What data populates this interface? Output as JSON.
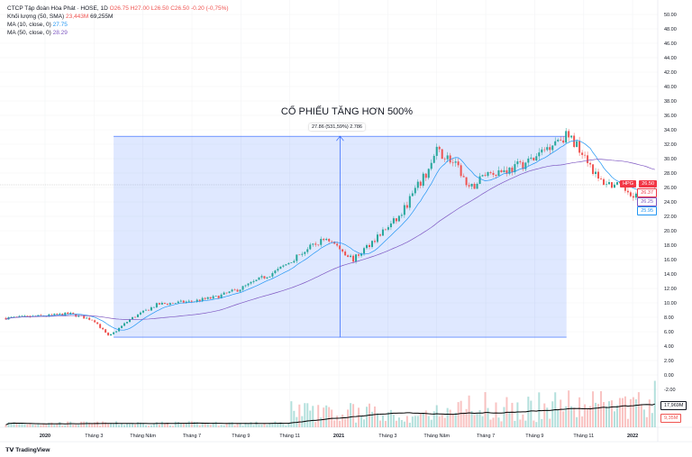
{
  "legend": {
    "symbol": "CTCP Tập đoàn Hòa Phát · HOSE, 1D",
    "open": "O26.75",
    "high": "H27.00",
    "low": "L26.50",
    "close": "C26.50",
    "change": "-0.20 (-0,75%)",
    "volume_label": "Khối lượng (50, SMA)",
    "volume_value": "23,443M",
    "volume_ma": "69,255M",
    "ma10_label": "MA (10, close, 0)",
    "ma10_value": "27.75",
    "ma50_label": "MA (50, close, 0)",
    "ma50_value": "28.29"
  },
  "annotation": {
    "title": "CỔ PHIẾU TĂNG HƠN 500%",
    "measure": "27.86 (531,59%) 2.786"
  },
  "price_labels": {
    "ticker": "HPG",
    "last": "26.50",
    "l1": "26.37",
    "l2": "26.25",
    "l3": "25.95",
    "vol_ma": "17,969M",
    "vol": "9,35M"
  },
  "branding": "TradingView",
  "colors": {
    "up": "#26a69a",
    "down": "#ef5350",
    "ma10": "#2196f3",
    "ma50": "#7e57c2",
    "measure": "#2962ff"
  },
  "chart_data": {
    "type": "candlestick",
    "title": "CỔ PHIẾU TĂNG HƠN 500%",
    "y_ticks": [
      50,
      48,
      46,
      44,
      42,
      40,
      38,
      36,
      34,
      32,
      30,
      28,
      26,
      24,
      22,
      20,
      18,
      16,
      14,
      12,
      10,
      8,
      6,
      4,
      2,
      0,
      -2
    ],
    "x_ticks": [
      {
        "t": 0,
        "label": "2020"
      },
      {
        "t": 2,
        "label": "Tháng 3"
      },
      {
        "t": 4,
        "label": "Tháng Năm"
      },
      {
        "t": 6,
        "label": "Tháng 7"
      },
      {
        "t": 8,
        "label": "Tháng 9"
      },
      {
        "t": 10,
        "label": "Tháng 11"
      },
      {
        "t": 12,
        "label": "2021"
      },
      {
        "t": 14,
        "label": "Tháng 3"
      },
      {
        "t": 16,
        "label": "Tháng Năm"
      },
      {
        "t": 18,
        "label": "Tháng 7"
      },
      {
        "t": 20,
        "label": "Tháng 9"
      },
      {
        "t": 22,
        "label": "Tháng 11"
      },
      {
        "t": 24,
        "label": "2022"
      }
    ],
    "price_keypoints_months_from_2020": [
      [
        -1.6,
        7.9
      ],
      [
        0,
        8.2
      ],
      [
        1,
        8.5
      ],
      [
        2,
        7.6
      ],
      [
        2.6,
        5.3
      ],
      [
        3.5,
        7.8
      ],
      [
        4.6,
        9.8
      ],
      [
        6,
        10.2
      ],
      [
        7,
        10.8
      ],
      [
        8,
        12
      ],
      [
        9.5,
        14.5
      ],
      [
        10.5,
        17
      ],
      [
        11.5,
        19
      ],
      [
        12.6,
        16
      ],
      [
        13.5,
        19
      ],
      [
        14.5,
        22
      ],
      [
        15,
        25
      ],
      [
        15.6,
        28
      ],
      [
        16,
        31
      ],
      [
        16.5,
        30
      ],
      [
        17,
        28
      ],
      [
        17.3,
        25.5
      ],
      [
        18,
        28
      ],
      [
        19,
        28.5
      ],
      [
        20,
        30
      ],
      [
        20.8,
        32.5
      ],
      [
        21.3,
        33.2
      ],
      [
        22,
        31
      ],
      [
        22.6,
        27
      ],
      [
        23.5,
        26
      ],
      [
        24.5,
        24.5
      ],
      [
        24.8,
        23.5
      ],
      [
        25,
        26.5
      ]
    ],
    "measure": {
      "from_t": 2.8,
      "to_t": 21.3,
      "from_price": 5.24,
      "to_price": 33.1,
      "change": 27.86,
      "change_pct": 531.59
    }
  }
}
